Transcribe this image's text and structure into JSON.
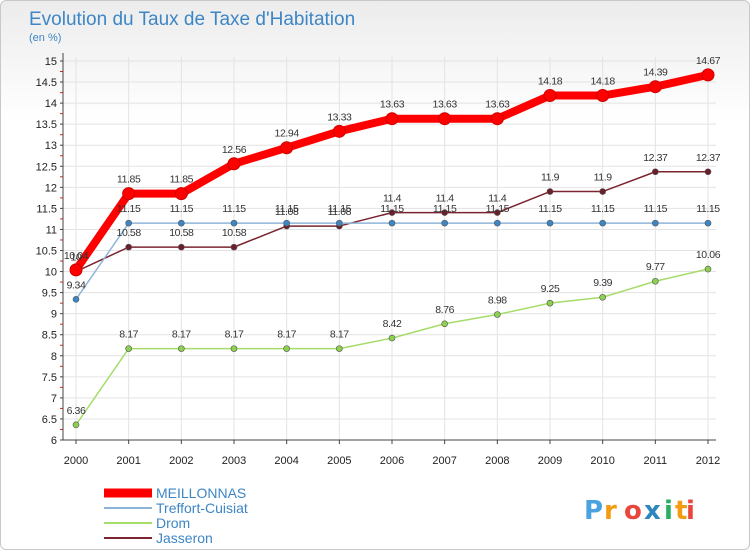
{
  "chart_data": {
    "type": "line",
    "title": "Evolution du Taux de Taxe d'Habitation",
    "subtitle": "(en %)",
    "xlabel": "",
    "ylabel": "",
    "categories": [
      "2000",
      "2001",
      "2002",
      "2003",
      "2004",
      "2005",
      "2006",
      "2007",
      "2008",
      "2009",
      "2010",
      "2011",
      "2012"
    ],
    "ylim": [
      6,
      15
    ],
    "yticks": [
      "6",
      "6.5",
      "7",
      "7.5",
      "8",
      "8.5",
      "9",
      "9.5",
      "10",
      "10.5",
      "11",
      "11.5",
      "12",
      "12.5",
      "13",
      "13.5",
      "14",
      "14.5",
      "15"
    ],
    "grid": true,
    "legend_position": "bottom-left",
    "series": [
      {
        "name": "MEILLONNAS",
        "color": "#ff0000",
        "marker_color": "#ff0000",
        "emphasis": "thick",
        "values": [
          10.04,
          11.85,
          11.85,
          12.56,
          12.94,
          13.33,
          13.63,
          13.63,
          13.63,
          14.18,
          14.18,
          14.39,
          14.67
        ],
        "labels": [
          "10.04",
          "11.85",
          "11.85",
          "12.56",
          "12.94",
          "13.33",
          "13.63",
          "13.63",
          "13.63",
          "14.18",
          "14.18",
          "14.39",
          "14.67"
        ]
      },
      {
        "name": "Treffort-Cuisiat",
        "color": "#8fb4d9",
        "marker_color": "#3d86c6",
        "emphasis": "normal",
        "values": [
          9.34,
          11.15,
          11.15,
          11.15,
          11.15,
          11.15,
          11.15,
          11.15,
          11.15,
          11.15,
          11.15,
          11.15,
          11.15
        ],
        "labels": [
          "9.34",
          "11.15",
          "11.15",
          "11.15",
          "11.15",
          "11.15",
          "11.15",
          "11.15",
          "11.15",
          "11.15",
          "11.15",
          "11.15",
          "11.15"
        ]
      },
      {
        "name": "Drom",
        "color": "#a6dc6a",
        "marker_color": "#8bd14f",
        "emphasis": "normal",
        "values": [
          6.36,
          8.17,
          8.17,
          8.17,
          8.17,
          8.17,
          8.42,
          8.76,
          8.98,
          9.25,
          9.39,
          9.77,
          10.06
        ],
        "labels": [
          "6.36",
          "8.17",
          "8.17",
          "8.17",
          "8.17",
          "8.17",
          "8.42",
          "8.76",
          "8.98",
          "9.25",
          "9.39",
          "9.77",
          "10.06"
        ]
      },
      {
        "name": "Jasseron",
        "color": "#7a2530",
        "marker_color": "#6b1f2a",
        "emphasis": "normal",
        "values": [
          10,
          10.58,
          10.58,
          10.58,
          11.08,
          11.08,
          11.4,
          11.4,
          11.4,
          11.9,
          11.9,
          12.37,
          12.37
        ],
        "labels": [
          "10",
          "10.58",
          "10.58",
          "10.58",
          "11.08",
          "11.08",
          "11.4",
          "11.4",
          "11.4",
          "11.9",
          "11.9",
          "12.37",
          "12.37"
        ]
      }
    ]
  },
  "logo": {
    "text": "Proxiti",
    "colors": [
      "#4aa3df",
      "#f39c12",
      "#e8463c",
      "#2e86c1",
      "#27ae60",
      "#f39c12",
      "#e8463c"
    ]
  }
}
